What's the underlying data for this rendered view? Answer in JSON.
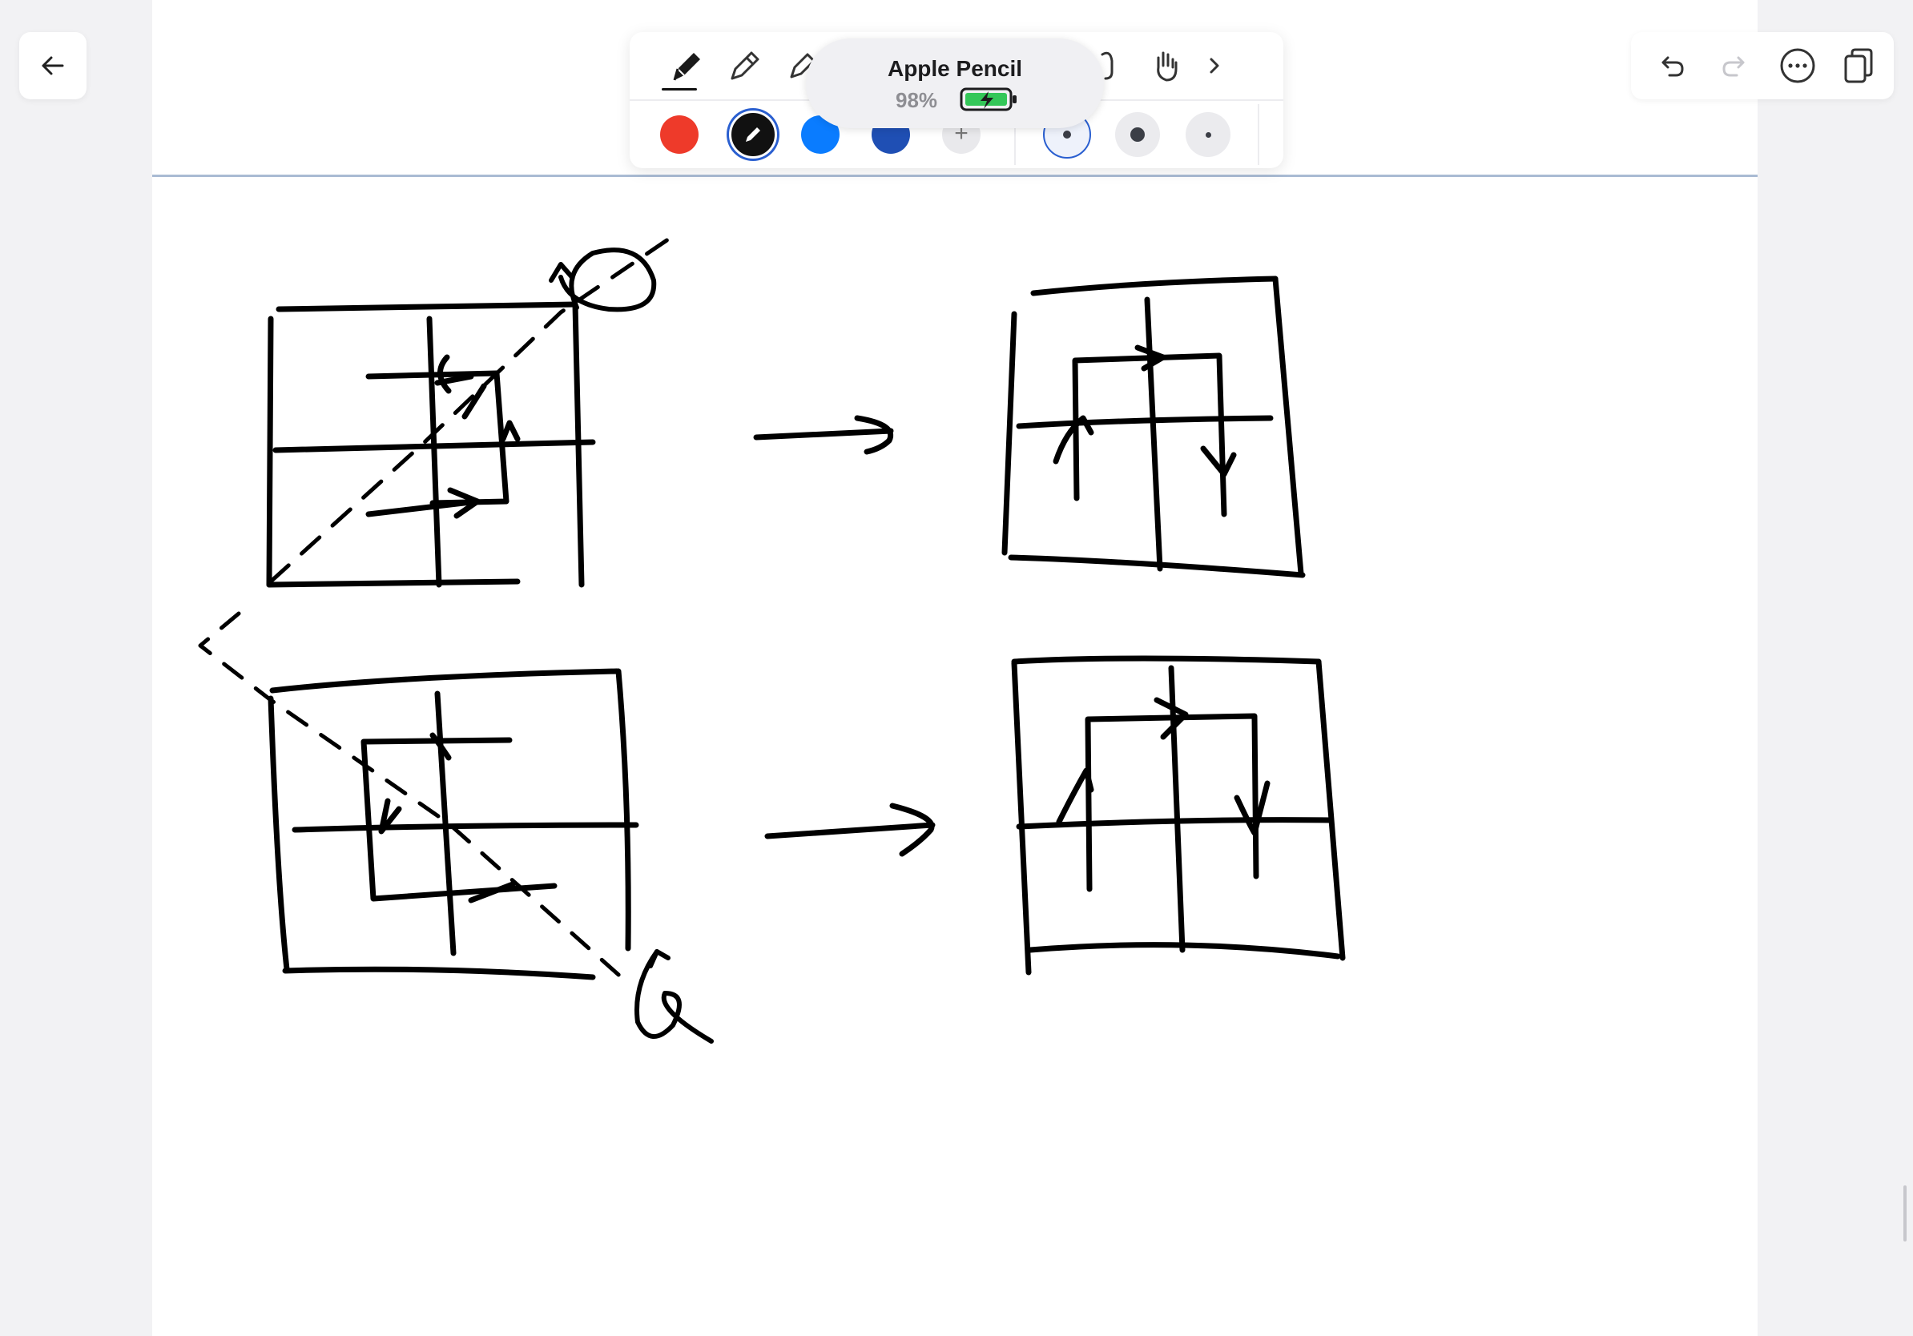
{
  "pencil_popup": {
    "name": "Apple Pencil",
    "battery_percent": "98%"
  },
  "toolbar": {
    "tools": [
      "pen",
      "pencil",
      "marker",
      "lasso",
      "hand"
    ],
    "colors": [
      "#ee3a2a",
      "#111111",
      "#0a7cff",
      "#1f4fb4"
    ],
    "selected_color": "#111111"
  },
  "icons": {
    "back": "arrow-left-icon",
    "undo": "undo-icon",
    "redo": "redo-icon",
    "more": "ellipsis-icon",
    "pages": "pages-icon",
    "next": "chevron-right-icon"
  }
}
